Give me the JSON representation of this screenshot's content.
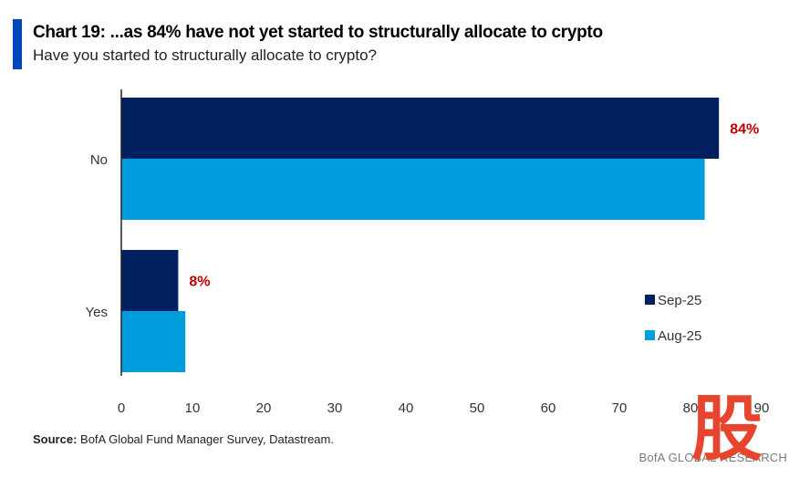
{
  "chart_data": {
    "type": "bar",
    "orientation": "horizontal",
    "title": "Chart 19: ...as 84% have not yet started to structurally allocate to crypto",
    "subtitle": "Have you started to structurally allocate to crypto?",
    "categories": [
      "No",
      "Yes"
    ],
    "series": [
      {
        "name": "Sep-25",
        "color": "#002060",
        "values": [
          84,
          8
        ]
      },
      {
        "name": "Aug-25",
        "color": "#009ddc",
        "values": [
          82,
          9
        ]
      }
    ],
    "data_labels": [
      {
        "category": "No",
        "series": "Sep-25",
        "text": "84%"
      },
      {
        "category": "Yes",
        "series": "Sep-25",
        "text": "8%"
      }
    ],
    "data_label_color": "#c00000",
    "xlim": [
      0,
      90
    ],
    "xticks": [
      0,
      10,
      20,
      30,
      40,
      50,
      60,
      70,
      80,
      90
    ],
    "xtick_labels": [
      "0",
      "10",
      "20",
      "30",
      "40",
      "50",
      "60",
      "70",
      "80",
      "90"
    ],
    "xlabel": "",
    "ylabel": "",
    "grid": false,
    "legend": {
      "position": "right",
      "entries": [
        "Sep-25",
        "Aug-25"
      ]
    }
  },
  "footer": {
    "source_label": "Source:",
    "source_text": " BofA Global Fund Manager Survey, Datastream.",
    "brand": "BofA GLOBAL RESEARCH"
  },
  "watermark": {
    "text": "股",
    "color": "#e8452f"
  }
}
